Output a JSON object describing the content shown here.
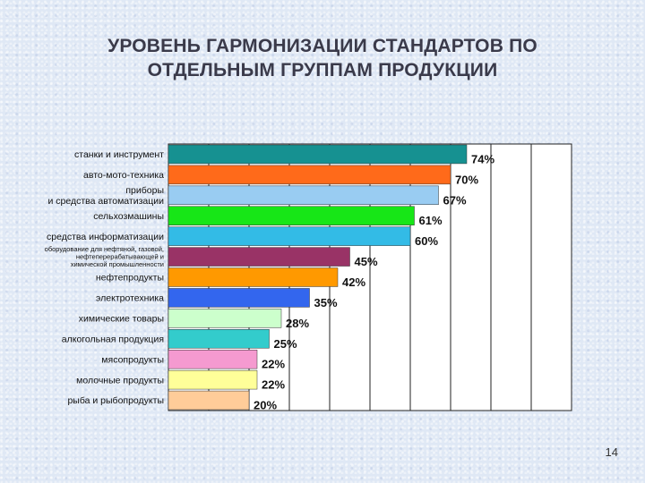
{
  "slide": {
    "title_line1": "УРОВЕНЬ ГАРМОНИЗАЦИИ СТАНДАРТОВ ПО",
    "title_line2": "ОТДЕЛЬНЫМ ГРУППАМ ПРОДУКЦИИ",
    "page_number": "14"
  },
  "chart_data": {
    "type": "bar",
    "orientation": "horizontal",
    "title": "УРОВЕНЬ ГАРМОНИЗАЦИИ СТАНДАРТОВ ПО ОТДЕЛЬНЫМ ГРУППАМ ПРОДУКЦИИ",
    "xlabel": "",
    "ylabel": "",
    "xlim": [
      0,
      100
    ],
    "grid": true,
    "categories": [
      "станки и инструмент",
      "авто-мото-техника",
      "приборы\nи средства автоматизации",
      "сельхозмашины",
      "средства информатизации",
      "оборудование для нефтяной, газовой,\nнефтеперерабатывающей и\nхимической промышленности",
      "нефтепродукты",
      "электротехника",
      "химические товары",
      "алкогольная продукция",
      "мясопродукты",
      "молочные продукты",
      "рыба и рыбопродукты"
    ],
    "values": [
      74,
      70,
      67,
      61,
      60,
      45,
      42,
      35,
      28,
      25,
      22,
      22,
      20
    ],
    "value_labels": [
      "74%",
      "70%",
      "67%",
      "61%",
      "60%",
      "45%",
      "42%",
      "35%",
      "28%",
      "25%",
      "22%",
      "22%",
      "20%"
    ],
    "bar_colors": [
      "#169191",
      "#ff6a1a",
      "#99ccf2",
      "#17e617",
      "#33bbe6",
      "#993366",
      "#ff9900",
      "#3366ee",
      "#ccffcc",
      "#33cccc",
      "#f59ad0",
      "#ffff99",
      "#ffcc99"
    ]
  }
}
